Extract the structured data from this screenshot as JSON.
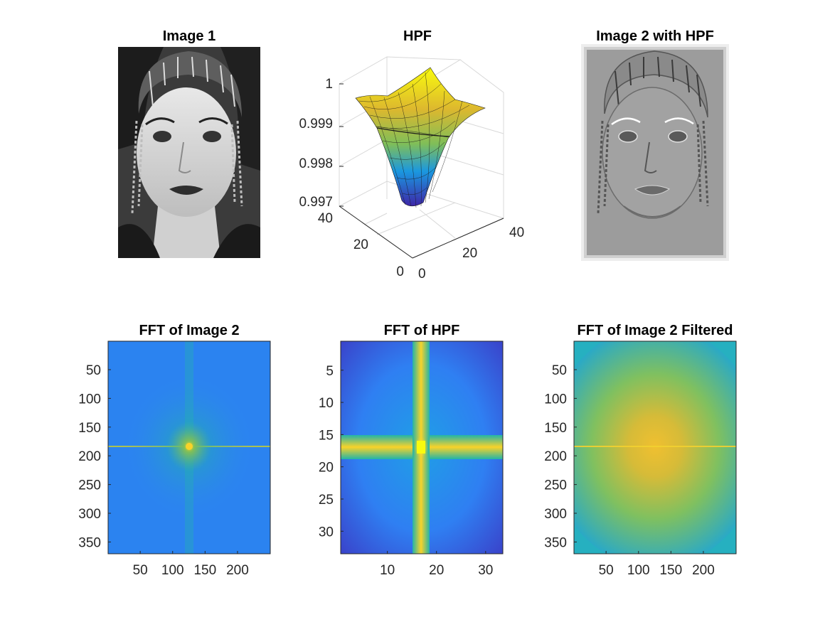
{
  "figure": {
    "titles": {
      "image1": "Image 1",
      "hpf": "HPF",
      "image2_hpf": "Image 2 with HPF",
      "fft_image2": "FFT of Image 2",
      "fft_hpf": "FFT of HPF",
      "fft_image2_filtered": "FFT of Image 2 Filtered"
    },
    "images": {
      "image1": "grayscale photograph of a woman with braided hair (original)",
      "image2_hpf": "same photograph after high-pass filtering (embossed gray look)"
    }
  },
  "colors": {
    "colormap_parula": [
      "#3e26a8",
      "#2f67f1",
      "#1a98e0",
      "#23b4a8",
      "#80be58",
      "#ddb82e",
      "#f9d329",
      "#f9fb0e"
    ],
    "axis": "#262626"
  },
  "chart_data": [
    {
      "id": "hpf_surface",
      "type": "surface3d",
      "title": "HPF",
      "x_range": [
        0,
        40
      ],
      "y_range": [
        0,
        40
      ],
      "z_range": [
        0.997,
        1
      ],
      "xticks": [
        "0",
        "20",
        "40"
      ],
      "yticks": [
        "0",
        "20",
        "40"
      ],
      "zticks": [
        "1",
        "0.999",
        "0.998",
        "0.997"
      ],
      "z_min_at_center": 0.9972,
      "z_max_at_edges": 1.0
    },
    {
      "id": "fft_image2",
      "type": "heatmap",
      "title": "FFT of Image 2",
      "x_range": [
        1,
        250
      ],
      "y_range": [
        1,
        370
      ],
      "xticks": [
        "50",
        "100",
        "150",
        "200"
      ],
      "yticks": [
        "50",
        "100",
        "150",
        "200",
        "250",
        "300",
        "350"
      ],
      "peak_at": [
        125,
        185
      ],
      "colormap": "parula"
    },
    {
      "id": "fft_hpf",
      "type": "heatmap",
      "title": "FFT of HPF",
      "x_range": [
        1,
        33
      ],
      "y_range": [
        1,
        33
      ],
      "xticks": [
        "10",
        "20",
        "30"
      ],
      "yticks": [
        "5",
        "10",
        "15",
        "20",
        "25",
        "30"
      ],
      "peak_at": [
        17,
        17
      ],
      "colormap": "parula"
    },
    {
      "id": "fft_image2_filtered",
      "type": "heatmap",
      "title": "FFT of Image 2 Filtered",
      "x_range": [
        1,
        250
      ],
      "y_range": [
        1,
        370
      ],
      "xticks": [
        "50",
        "100",
        "150",
        "200"
      ],
      "yticks": [
        "50",
        "100",
        "150",
        "200",
        "250",
        "300",
        "350"
      ],
      "peak_at": [
        125,
        185
      ],
      "colormap": "parula"
    }
  ]
}
